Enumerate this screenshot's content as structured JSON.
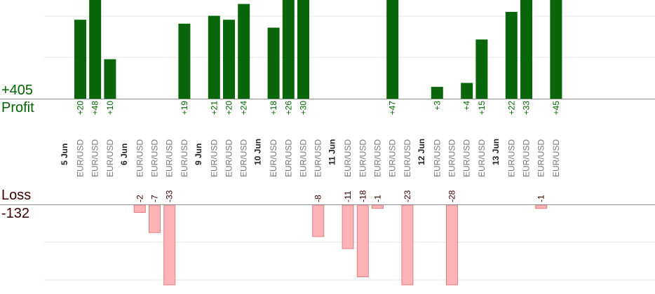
{
  "summary": {
    "profit_total": "+405",
    "profit_label": "Profit",
    "loss_label": "Loss",
    "loss_total": "-132"
  },
  "colors": {
    "profit_bar": "#0a660a",
    "profit_text": "#006400",
    "loss_bar": "#ffb3b6",
    "loss_border": "#e07f84",
    "loss_text": "#3a0000",
    "date_text": "#222222",
    "pair_text": "#777777"
  },
  "chart_data": {
    "type": "bar",
    "days": [
      {
        "label": "5 Jun",
        "trades": [
          {
            "pair": "EUR/USD",
            "value": 20,
            "label": "+20"
          },
          {
            "pair": "EUR/USD",
            "value": 48,
            "label": "+48"
          },
          {
            "pair": "EUR/USD",
            "value": 10,
            "label": "+10"
          }
        ]
      },
      {
        "label": "6 Jun",
        "trades": [
          {
            "pair": "EUR/USD",
            "value": -2,
            "label": "-2"
          },
          {
            "pair": "EUR/USD",
            "value": -7,
            "label": "-7"
          },
          {
            "pair": "EUR/USD",
            "value": -33,
            "label": "-33"
          },
          {
            "pair": "EUR/USD",
            "value": 19,
            "label": "+19"
          }
        ]
      },
      {
        "label": "9 Jun",
        "trades": [
          {
            "pair": "EUR/USD",
            "value": 21,
            "label": "+21"
          },
          {
            "pair": "EUR/USD",
            "value": 20,
            "label": "+20"
          },
          {
            "pair": "EUR/USD",
            "value": 24,
            "label": "+24"
          }
        ]
      },
      {
        "label": "10 Jun",
        "trades": [
          {
            "pair": "EUR/USD",
            "value": 18,
            "label": "+18"
          },
          {
            "pair": "EUR/USD",
            "value": 26,
            "label": "+26"
          },
          {
            "pair": "EUR/USD",
            "value": 30,
            "label": "+30"
          },
          {
            "pair": "EUR/USD",
            "value": -8,
            "label": "-8"
          }
        ]
      },
      {
        "label": "11 Jun",
        "trades": [
          {
            "pair": "EUR/USD",
            "value": -11,
            "label": "-11"
          },
          {
            "pair": "EUR/USD",
            "value": -18,
            "label": "-18"
          },
          {
            "pair": "EUR/USD",
            "value": -1,
            "label": "-1"
          },
          {
            "pair": "EUR/USD",
            "value": 47,
            "label": "+47"
          },
          {
            "pair": "EUR/USD",
            "value": -23,
            "label": "-23"
          }
        ]
      },
      {
        "label": "12 Jun",
        "trades": [
          {
            "pair": "EUR/USD",
            "value": 3,
            "label": "+3"
          },
          {
            "pair": "EUR/USD",
            "value": -28,
            "label": "-28"
          },
          {
            "pair": "EUR/USD",
            "value": 4,
            "label": "+4"
          },
          {
            "pair": "EUR/USD",
            "value": 15,
            "label": "+15"
          }
        ]
      },
      {
        "label": "13 Jun",
        "trades": [
          {
            "pair": "EUR/USD",
            "value": 22,
            "label": "+22"
          },
          {
            "pair": "EUR/USD",
            "value": 33,
            "label": "+33"
          },
          {
            "pair": "EUR/USD",
            "value": -1,
            "label": "-1"
          },
          {
            "pair": "EUR/USD",
            "value": 45,
            "label": "+45"
          }
        ]
      }
    ],
    "profit_ylim": [
      0,
      25
    ],
    "loss_ylim": [
      -20,
      0
    ],
    "grid": true
  }
}
